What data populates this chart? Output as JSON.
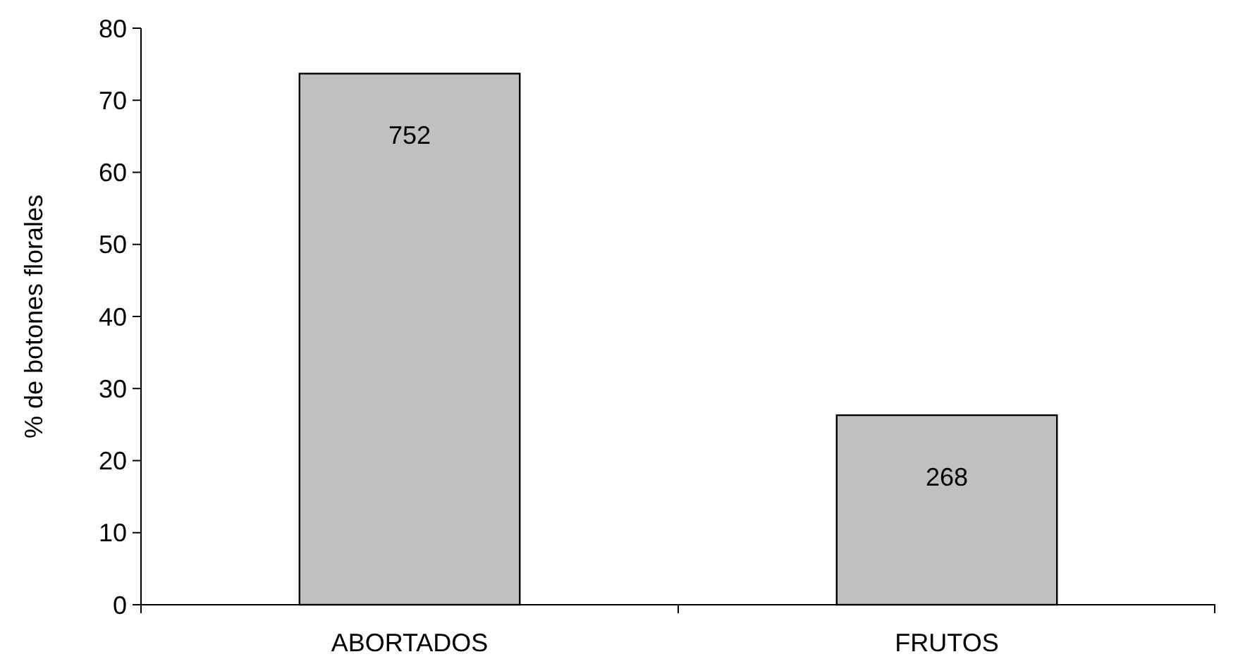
{
  "chart_data": {
    "type": "bar",
    "ylabel": "% de botones florales",
    "categories": [
      "ABORTADOS",
      "FRUTOS"
    ],
    "values": [
      73.7,
      26.3
    ],
    "color": "#c0c0c0",
    "ylim": [
      0,
      80
    ],
    "yticks": [
      0,
      10,
      20,
      30,
      40,
      50,
      60,
      70,
      80
    ],
    "grid": false,
    "annotations": [
      "752",
      "268"
    ]
  }
}
